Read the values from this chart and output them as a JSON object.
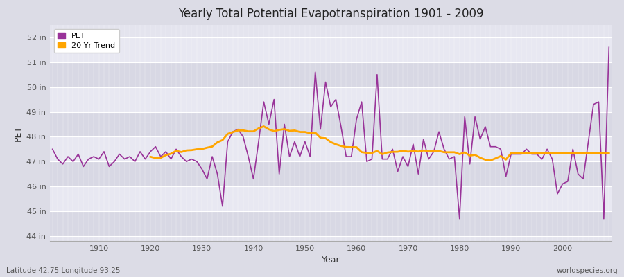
{
  "title": "Yearly Total Potential Evapotranspiration 1901 - 2009",
  "xlabel": "Year",
  "ylabel": "PET",
  "footnote_left": "Latitude 42.75 Longitude 93.25",
  "footnote_right": "worldspecies.org",
  "pet_color": "#993399",
  "trend_color": "#FFA500",
  "background_color": "#DCDCE8",
  "plot_bg_color": "#E8E8EE",
  "grid_color": "#FFFFFF",
  "ylim": [
    43.8,
    52.5
  ],
  "yticks": [
    44,
    45,
    46,
    47,
    48,
    49,
    50,
    51,
    52
  ],
  "ytick_labels": [
    "44 in",
    "45 in",
    "46 in",
    "47 in",
    "48 in",
    "49 in",
    "50 in",
    "51 in",
    "52 in"
  ],
  "years": [
    1901,
    1902,
    1903,
    1904,
    1905,
    1906,
    1907,
    1908,
    1909,
    1910,
    1911,
    1912,
    1913,
    1914,
    1915,
    1916,
    1917,
    1918,
    1919,
    1920,
    1921,
    1922,
    1923,
    1924,
    1925,
    1926,
    1927,
    1928,
    1929,
    1930,
    1931,
    1932,
    1933,
    1934,
    1935,
    1936,
    1937,
    1938,
    1939,
    1940,
    1941,
    1942,
    1943,
    1944,
    1945,
    1946,
    1947,
    1948,
    1949,
    1950,
    1951,
    1952,
    1953,
    1954,
    1955,
    1956,
    1957,
    1958,
    1959,
    1960,
    1961,
    1962,
    1963,
    1964,
    1965,
    1966,
    1967,
    1968,
    1969,
    1970,
    1971,
    1972,
    1973,
    1974,
    1975,
    1976,
    1977,
    1978,
    1979,
    1980,
    1981,
    1982,
    1983,
    1984,
    1985,
    1986,
    1987,
    1988,
    1989,
    1990,
    1991,
    1992,
    1993,
    1994,
    1995,
    1996,
    1997,
    1998,
    1999,
    2000,
    2001,
    2002,
    2003,
    2004,
    2005,
    2006,
    2007,
    2008,
    2009
  ],
  "pet_values": [
    47.5,
    47.1,
    46.9,
    47.2,
    47.0,
    47.3,
    46.8,
    47.1,
    47.2,
    47.1,
    47.4,
    46.8,
    47.0,
    47.3,
    47.1,
    47.2,
    47.0,
    47.4,
    47.1,
    47.4,
    47.6,
    47.2,
    47.4,
    47.1,
    47.5,
    47.2,
    47.0,
    47.1,
    47.0,
    46.7,
    46.3,
    47.2,
    46.5,
    45.2,
    47.8,
    48.2,
    48.3,
    48.0,
    47.2,
    46.3,
    47.8,
    49.4,
    48.5,
    49.5,
    46.5,
    48.5,
    47.2,
    47.8,
    47.2,
    47.8,
    47.2,
    50.6,
    48.3,
    50.2,
    49.2,
    49.5,
    48.4,
    47.2,
    47.2,
    48.7,
    49.4,
    47.0,
    47.1,
    50.5,
    47.1,
    47.1,
    47.5,
    46.6,
    47.2,
    46.8,
    47.7,
    46.5,
    47.9,
    47.1,
    47.4,
    48.2,
    47.5,
    47.1,
    47.2,
    44.7,
    48.8,
    46.9,
    48.8,
    47.9,
    48.4,
    47.6,
    47.6,
    47.5,
    46.4,
    47.3,
    47.3,
    47.3,
    47.5,
    47.3,
    47.3,
    47.1,
    47.5,
    47.1,
    45.7,
    46.1,
    46.2,
    47.5,
    46.5,
    46.3,
    47.8,
    49.3,
    49.4,
    44.7,
    51.6
  ]
}
